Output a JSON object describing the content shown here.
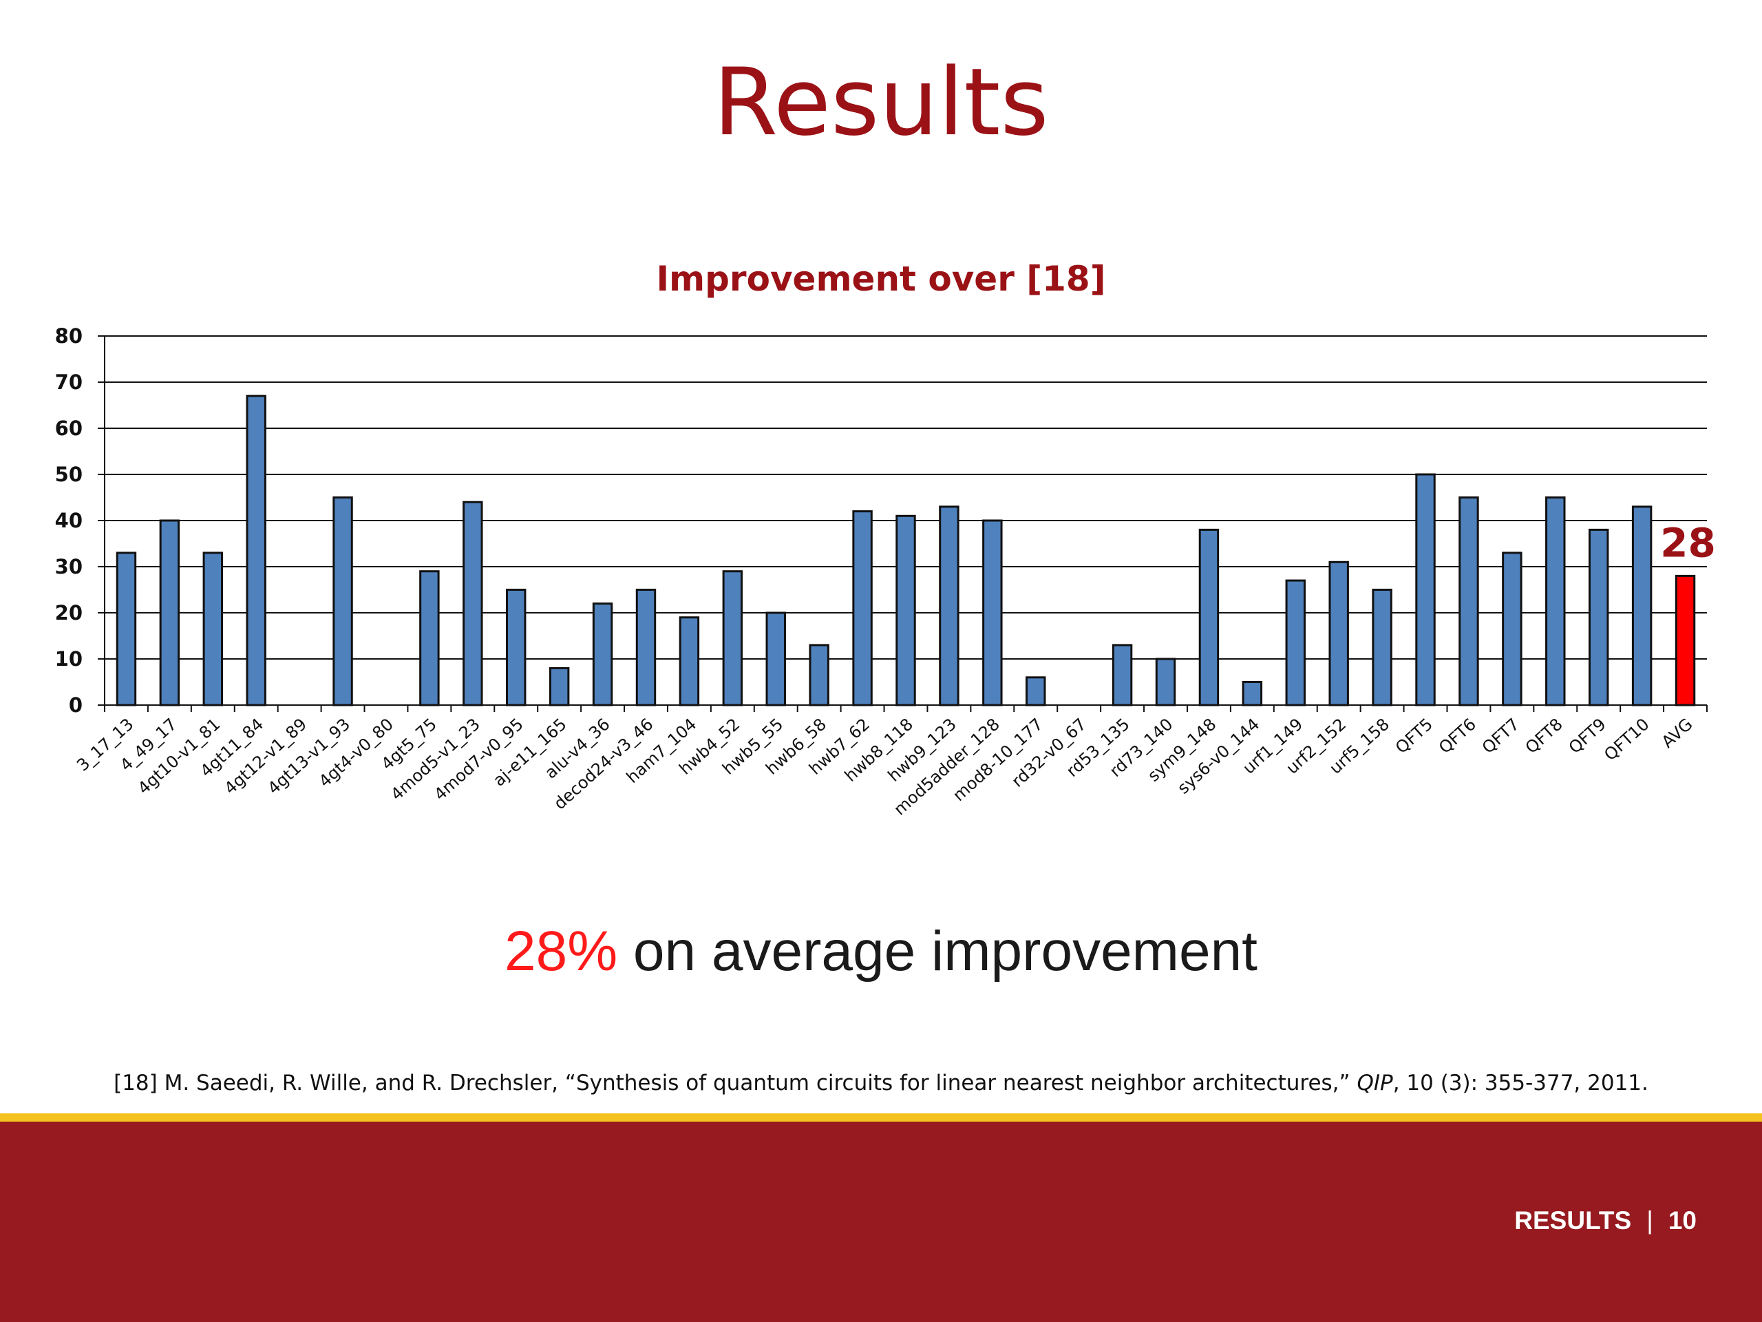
{
  "slide": {
    "title": "Results",
    "summary_highlight": "28%",
    "summary_rest": " on average improvement",
    "reference_pre": "[18] M. Saeedi, R. Wille, and R. Drechsler, “Synthesis of quantum circuits for linear nearest neighbor architectures,” ",
    "reference_journal": "QIP",
    "reference_post": ", 10 (3): 355-377, 2011.",
    "footer_section": "RESULTS",
    "footer_sep": "|",
    "footer_page": "10"
  },
  "colors": {
    "bar": "#4f81bd",
    "highlight_bar": "#ff0000",
    "title": "#9b1216",
    "footer": "#961a1f",
    "stripe": "#f4c21e"
  },
  "chart_data": {
    "type": "bar",
    "title": "Improvement over [18]",
    "xlabel": "",
    "ylabel": "",
    "ylim": [
      0,
      80
    ],
    "yticks": [
      0,
      10,
      20,
      30,
      40,
      50,
      60,
      70,
      80
    ],
    "grid": true,
    "categories": [
      "3_17_13",
      "4_49_17",
      "4gt10-v1_81",
      "4gt11_84",
      "4gt12-v1_89",
      "4gt13-v1_93",
      "4gt4-v0_80",
      "4gt5_75",
      "4mod5-v1_23",
      "4mod7-v0_95",
      "aj-e11_165",
      "alu-v4_36",
      "decod24-v3_46",
      "ham7_104",
      "hwb4_52",
      "hwb5_55",
      "hwb6_58",
      "hwb7_62",
      "hwb8_118",
      "hwb9_123",
      "mod5adder_128",
      "mod8-10_177",
      "rd32-v0_67",
      "rd53_135",
      "rd73_140",
      "sym9_148",
      "sys6-v0_144",
      "urf1_149",
      "urf2_152",
      "urf5_158",
      "QFT5",
      "QFT6",
      "QFT7",
      "QFT8",
      "QFT9",
      "QFT10",
      "AVG"
    ],
    "values": [
      33,
      40,
      33,
      67,
      0,
      45,
      0,
      29,
      44,
      25,
      8,
      22,
      25,
      19,
      29,
      20,
      13,
      42,
      41,
      43,
      40,
      6,
      0,
      13,
      10,
      38,
      5,
      27,
      31,
      25,
      50,
      45,
      33,
      45,
      38,
      43,
      28
    ],
    "highlight_category": "AVG",
    "annotation": "28"
  }
}
